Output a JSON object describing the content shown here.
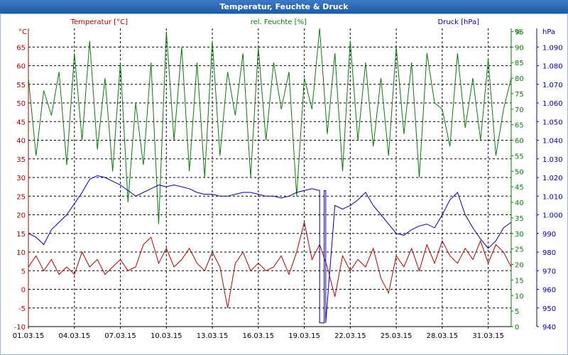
{
  "window": {
    "title": "Temperatur, Feuchte & Druck"
  },
  "colors": {
    "temperature": "#b00000",
    "humidity": "#0a7a0a",
    "pressure": "#0000a0"
  },
  "chart_data": {
    "type": "line",
    "title": "Temperatur, Feuchte & Druck",
    "grid": true,
    "x_tick_labels": [
      "01.03.15",
      "04.03.15",
      "07.03.15",
      "10.03.15",
      "13.03.15",
      "16.03.15",
      "19.03.15",
      "22.03.15",
      "25.03.15",
      "28.03.15",
      "31.03.15"
    ],
    "xlim": [
      1,
      32.5
    ],
    "axes": {
      "temperature": {
        "unit_label": "°C",
        "name": "Temperatur [°C]",
        "ylim": [
          -10,
          70
        ],
        "ticks": [
          -10,
          -5,
          0,
          5,
          10,
          15,
          20,
          25,
          30,
          35,
          40,
          45,
          50,
          55,
          60,
          65
        ]
      },
      "humidity": {
        "unit_label": "%",
        "name": "rel. Feuchte [%]",
        "ylim": [
          0,
          96
        ],
        "ticks": [
          0,
          5,
          10,
          15,
          20,
          25,
          30,
          35,
          40,
          45,
          50,
          55,
          60,
          65,
          70,
          75,
          80,
          85,
          90,
          95
        ]
      },
      "pressure": {
        "unit_label": "hPa",
        "name": "Druck [hPa]",
        "ylim": [
          940,
          1100
        ],
        "ticks": [
          940,
          950,
          960,
          970,
          980,
          990,
          1000,
          1010,
          1020,
          1030,
          1040,
          1050,
          1060,
          1070,
          1080,
          1090
        ]
      }
    },
    "series": [
      {
        "name": "Temperatur [°C]",
        "axis": "temperature",
        "x": [
          1,
          1.5,
          2,
          2.5,
          3,
          3.5,
          4,
          4.5,
          5,
          5.5,
          6,
          6.5,
          7,
          7.5,
          8,
          8.5,
          9,
          9.5,
          10,
          10.5,
          11,
          11.5,
          12,
          12.5,
          13,
          13.5,
          14,
          14.5,
          15,
          15.5,
          16,
          16.5,
          17,
          17.5,
          18,
          18.5,
          19,
          19.5,
          20,
          20.5,
          21,
          21.5,
          22,
          22.5,
          23,
          23.5,
          24,
          24.5,
          25,
          25.5,
          26,
          26.5,
          27,
          27.5,
          28,
          28.5,
          29,
          29.5,
          30,
          30.5,
          31,
          31.5,
          32,
          32.5
        ],
        "values": [
          6,
          9,
          5,
          8,
          4,
          6,
          4,
          10,
          6,
          8,
          4,
          6,
          8,
          5,
          6,
          12,
          14,
          7,
          11,
          6,
          8,
          11,
          7,
          5,
          10,
          6,
          -5,
          7,
          10,
          5,
          7,
          5,
          6,
          9,
          4,
          10,
          18,
          8,
          12,
          6,
          -2,
          9,
          5,
          8,
          6,
          11,
          3,
          -1,
          9,
          6,
          11,
          5,
          12,
          7,
          13,
          9,
          7,
          11,
          8,
          13,
          7,
          12,
          10,
          6
        ]
      },
      {
        "name": "rel. Feuchte [%]",
        "axis": "humidity",
        "x": [
          1,
          1.5,
          2,
          2.5,
          3,
          3.5,
          4,
          4.5,
          5,
          5.5,
          6,
          6.5,
          7,
          7.5,
          8,
          8.5,
          9,
          9.5,
          10,
          10.5,
          11,
          11.5,
          12,
          12.5,
          13,
          13.5,
          14,
          14.5,
          15,
          15.5,
          16,
          16.5,
          17,
          17.5,
          18,
          18.5,
          19,
          19.5,
          20,
          20.5,
          21,
          21.5,
          22,
          22.5,
          23,
          23.5,
          24,
          24.5,
          25,
          25.5,
          26,
          26.5,
          27,
          27.5,
          28,
          28.5,
          29,
          29.5,
          30,
          30.5,
          31,
          31.5,
          32,
          32.5
        ],
        "values": [
          80,
          55,
          76,
          68,
          82,
          52,
          88,
          60,
          92,
          57,
          80,
          50,
          85,
          40,
          72,
          52,
          85,
          33,
          95,
          60,
          90,
          50,
          85,
          48,
          92,
          55,
          82,
          68,
          88,
          48,
          90,
          60,
          85,
          70,
          82,
          42,
          80,
          70,
          96,
          62,
          88,
          50,
          92,
          60,
          85,
          58,
          80,
          55,
          90,
          62,
          85,
          48,
          88,
          72,
          70,
          58,
          88,
          64,
          80,
          60,
          86,
          55,
          70,
          80
        ]
      },
      {
        "name": "Druck [hPa]",
        "axis": "pressure",
        "x": [
          1,
          1.5,
          2,
          2.5,
          3,
          3.5,
          4,
          4.5,
          5,
          5.5,
          6,
          6.5,
          7,
          7.5,
          8,
          8.5,
          9,
          9.5,
          10,
          10.5,
          11,
          11.5,
          12,
          12.5,
          13,
          13.5,
          14,
          14.5,
          15,
          15.5,
          16,
          16.5,
          17,
          17.5,
          18,
          18.5,
          19,
          19.5,
          20,
          20.0001,
          20.3,
          20.3001,
          20.4,
          20.4001,
          21,
          21.5,
          22,
          22.5,
          23,
          23.5,
          24,
          24.5,
          25,
          25.5,
          26,
          26.5,
          27,
          27.5,
          28,
          28.5,
          29,
          29.5,
          30,
          30.5,
          31,
          31.5,
          32,
          32.5
        ],
        "values": [
          990,
          988,
          984,
          992,
          996,
          1000,
          1006,
          1012,
          1019,
          1021,
          1020,
          1018,
          1016,
          1013,
          1010,
          1012,
          1014,
          1016,
          1015,
          1016,
          1015,
          1014,
          1012,
          1011,
          1011,
          1010,
          1010,
          1011,
          1012,
          1012,
          1011,
          1010,
          1010,
          1009,
          1010,
          1012,
          1013,
          1014,
          1013,
          942,
          942,
          1013,
          1013,
          942,
          1005,
          1003,
          1005,
          1008,
          1012,
          1005,
          1000,
          995,
          990,
          989,
          992,
          994,
          995,
          993,
          1000,
          1008,
          1012,
          1000,
          993,
          987,
          982,
          986,
          993,
          996
        ]
      }
    ]
  }
}
